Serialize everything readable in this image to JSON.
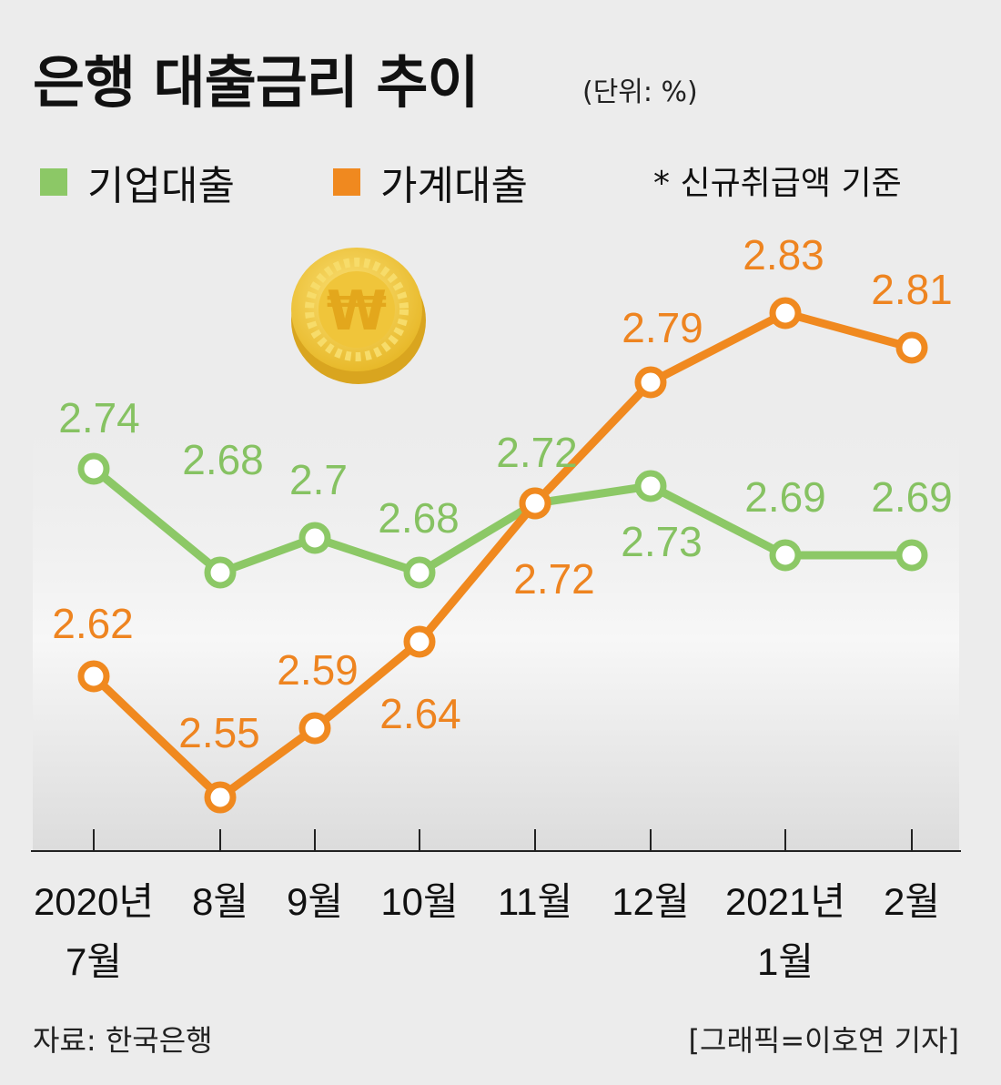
{
  "title": "은행 대출금리 추이",
  "unit": "(단위: %)",
  "basis_note": "* 신규취급액 기준",
  "source": "자료: 한국은행",
  "credit": "[그래픽=이호연 기자]",
  "coin_symbol": "₩",
  "colors": {
    "corporate": "#8cc866",
    "household": "#f0891f",
    "corporate_label": "#86c262",
    "household_label": "#ee8420",
    "axis": "#222222",
    "coin": "#f3d046"
  },
  "chart_data": {
    "type": "line",
    "categories": [
      "2020년\n7월",
      "8월",
      "9월",
      "10월",
      "11월",
      "12월",
      "2021년\n1월",
      "2월"
    ],
    "series": [
      {
        "name": "기업대출",
        "values": [
          2.74,
          2.68,
          2.7,
          2.68,
          2.72,
          2.73,
          2.69,
          2.69
        ]
      },
      {
        "name": "가계대출",
        "values": [
          2.62,
          2.55,
          2.59,
          2.64,
          2.72,
          2.79,
          2.83,
          2.81
        ]
      }
    ],
    "title": "은행 대출금리 추이",
    "xlabel": "",
    "ylabel": "",
    "legend": "top-left",
    "grid": false
  }
}
